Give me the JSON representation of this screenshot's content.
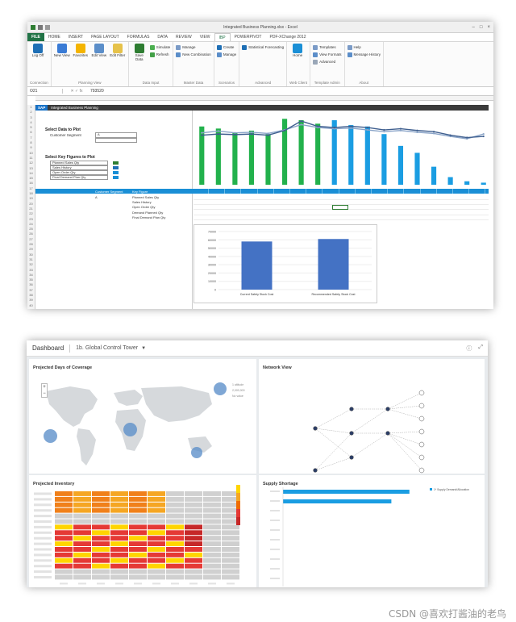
{
  "excel": {
    "window_title": "Integrated Business Planning.xlsx - Excel",
    "tabs": [
      {
        "label": "FILE",
        "cls": "file"
      },
      {
        "label": "HOME",
        "cls": ""
      },
      {
        "label": "INSERT",
        "cls": ""
      },
      {
        "label": "PAGE LAYOUT",
        "cls": ""
      },
      {
        "label": "FORMULAS",
        "cls": ""
      },
      {
        "label": "DATA",
        "cls": ""
      },
      {
        "label": "REVIEW",
        "cls": ""
      },
      {
        "label": "VIEW",
        "cls": ""
      },
      {
        "label": "IBP",
        "cls": "active"
      },
      {
        "label": "POWERPIVOT",
        "cls": ""
      },
      {
        "label": "PDF-XChange 2012",
        "cls": ""
      }
    ],
    "ribbon": [
      {
        "group": "Connection",
        "big": [
          {
            "label": "Log Off",
            "color": "#1f6fb5"
          }
        ],
        "small": []
      },
      {
        "group": "Planning View",
        "big": [
          {
            "label": "New View",
            "color": "#3a7bd5"
          },
          {
            "label": "Favorites",
            "color": "#f4b400"
          },
          {
            "label": "Edit View",
            "color": "#5b8ec9"
          },
          {
            "label": "Edit Filter",
            "color": "#e6c24a"
          }
        ],
        "small": []
      },
      {
        "group": "Data Input",
        "big": [
          {
            "label": "Save Data",
            "color": "#2e7d32"
          }
        ],
        "small": [
          {
            "label": "Simulate",
            "color": "#4caf50"
          },
          {
            "label": "Refresh",
            "color": "#43a047"
          }
        ]
      },
      {
        "group": "Master Data",
        "big": [],
        "small": [
          {
            "label": "Manage",
            "color": "#7b9bc7"
          },
          {
            "label": "New Combination",
            "color": "#5b8ec9"
          }
        ]
      },
      {
        "group": "Scenarios",
        "big": [],
        "small": [
          {
            "label": "Create",
            "color": "#1f6fb5"
          },
          {
            "label": "Manage",
            "color": "#5b8ec9"
          }
        ]
      },
      {
        "group": "Advanced",
        "big": [],
        "small": [
          {
            "label": "Statistical Forecasting",
            "color": "#1f6fb5"
          }
        ]
      },
      {
        "group": "Web Client",
        "big": [
          {
            "label": "Home",
            "color": "#1a8fd6"
          }
        ],
        "small": []
      },
      {
        "group": "Template Admin",
        "big": [],
        "small": [
          {
            "label": "Templates",
            "color": "#7b9bc7"
          },
          {
            "label": "View Formats",
            "color": "#5b8ec9"
          },
          {
            "label": "Advanced",
            "color": "#9aa7b8"
          }
        ]
      },
      {
        "group": "About",
        "big": [],
        "small": [
          {
            "label": "Help",
            "color": "#7b9bc7"
          },
          {
            "label": "Message History",
            "color": "#5b8ec9"
          }
        ]
      }
    ],
    "name_box": "O21",
    "formula_value": "793520",
    "banner_logo": "SAP",
    "banner_title": "Integrated Business Planning",
    "select_data": {
      "title": "Select Data to Plot",
      "label": "Customer Segment",
      "value": "A"
    },
    "select_figures": {
      "title": "Select Key Figures to Plot",
      "items": [
        {
          "label": "Planned Sales Qty",
          "color": "#2e7d32"
        },
        {
          "label": "Sales History",
          "color": "#1f6fb5"
        },
        {
          "label": "Open Order Qty",
          "color": "#1a8fd6"
        },
        {
          "label": "Final Demand Plan Qty",
          "color": "#1a8fd6"
        }
      ]
    },
    "table_header": [
      "Customer Segment",
      "Key Figure"
    ],
    "table_segment": "A",
    "table_rows": [
      "Planned Sales Qty",
      "Sales History",
      "Open Order Qty",
      "Demand Planned Qty",
      "Final Demand Plan Qty"
    ],
    "chart_values": {
      "bars": [
        0.84,
        0.81,
        0.75,
        0.78,
        0.73,
        0.95,
        0.93,
        0.88,
        0.93,
        0.86,
        0.84,
        0.73,
        0.56,
        0.46,
        0.26,
        0.11,
        0.05,
        0.03
      ],
      "bar_colors": [
        "#22b14c",
        "#22b14c",
        "#22b14c",
        "#22b14c",
        "#22b14c",
        "#22b14c",
        "#22b14c",
        "#22b14c",
        "#1a9de2",
        "#1a9de2",
        "#1a9de2",
        "#1a9de2",
        "#1a9de2",
        "#1a9de2",
        "#1a9de2",
        "#1a9de2",
        "#1a9de2",
        "#1a9de2"
      ],
      "line_a": [
        0.88,
        0.91,
        0.88,
        0.89,
        0.87,
        0.93,
        1.02,
        0.97,
        0.95,
        0.96,
        0.93,
        0.9,
        0.92,
        0.89,
        0.87,
        0.82,
        0.78,
        0.86
      ],
      "line_b": [
        0.84,
        0.86,
        0.85,
        0.86,
        0.84,
        0.92,
        1.08,
        0.99,
        0.97,
        0.99,
        0.97,
        0.93,
        0.95,
        0.92,
        0.9,
        0.84,
        0.8,
        0.82
      ]
    },
    "small_chart": {
      "categories": [
        "Current Safety Stock Cost",
        "Recommended Safety Stock Cost"
      ],
      "values": [
        58000,
        61000
      ],
      "y_ticks": [
        "70000",
        "60000",
        "50000",
        "40000",
        "30000",
        "20000",
        "10000",
        "0"
      ]
    }
  },
  "dashboard": {
    "title": "Dashboard",
    "page_name": "1b. Global Control Tower",
    "tiles": {
      "coverage": "Projected Days of Coverage",
      "network": "Network View",
      "inventory": "Projected Inventory",
      "shortage": "Supply Shortage"
    },
    "coverage_legend": [
      "1 altitude",
      "2,000,000",
      "No value"
    ],
    "heatmap": {
      "rows": 16,
      "cols": 10,
      "orange_rows": [
        0,
        1,
        2,
        3
      ],
      "red_rows": [
        6,
        7,
        8,
        9,
        10,
        11,
        12,
        13
      ],
      "legend_colors": [
        "#ffd500",
        "#f5a623",
        "#ef6c00",
        "#e53935",
        "#c62828"
      ]
    },
    "shortage": {
      "legend": "1* Supply Demand/Allocation",
      "bars": [
        0.56,
        0.48
      ],
      "x_ticks": [
        "0",
        "100",
        "200",
        "300",
        "400",
        "500",
        "600",
        "700",
        "800",
        "900"
      ]
    }
  },
  "watermark": "CSDN @喜欢打酱油的老鸟"
}
